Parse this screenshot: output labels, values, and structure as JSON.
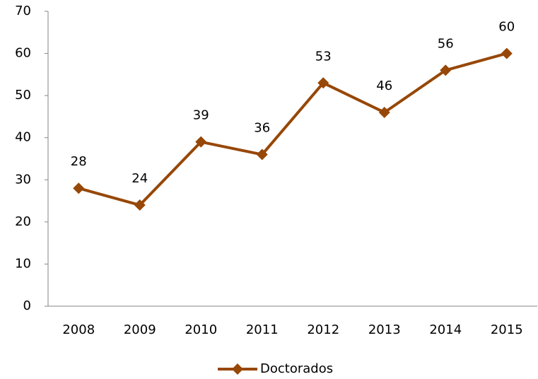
{
  "chart_data": {
    "type": "line",
    "categories": [
      "2008",
      "2009",
      "2010",
      "2011",
      "2012",
      "2013",
      "2014",
      "2015"
    ],
    "series": [
      {
        "name": "Doctorados",
        "color": "#974706",
        "values": [
          28,
          24,
          39,
          36,
          53,
          46,
          56,
          60
        ]
      }
    ],
    "ylim": [
      0,
      70
    ],
    "yticks": [
      0,
      10,
      20,
      30,
      40,
      50,
      60,
      70
    ],
    "grid": false,
    "legend": "bottom"
  }
}
